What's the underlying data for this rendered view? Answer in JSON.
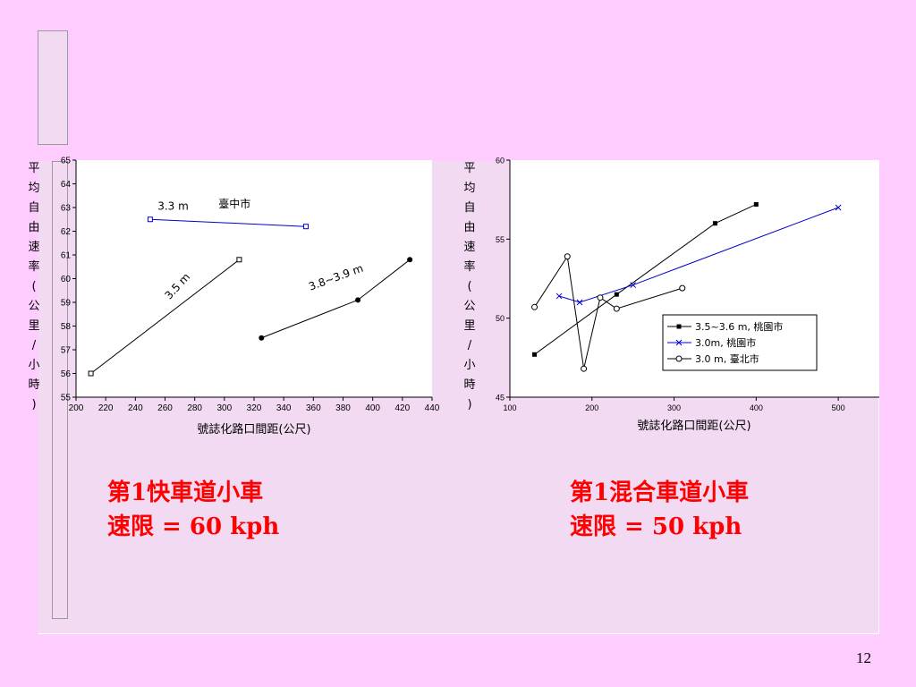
{
  "slide": {
    "page_number": "12",
    "left_caption": [
      "第1快車道小車",
      "速限 = 60 kph"
    ],
    "right_caption": [
      "第1混合車道小車",
      "速限 = 50 kph"
    ]
  },
  "chart_data": [
    {
      "type": "line",
      "title": "",
      "xlabel": "號誌化路口間距(公尺)",
      "ylabel": "平均自由速率(公里/小時)",
      "xlim": [
        200,
        440
      ],
      "ylim": [
        55,
        65
      ],
      "xticks": [
        200,
        220,
        240,
        260,
        280,
        300,
        320,
        340,
        360,
        380,
        400,
        420,
        440
      ],
      "yticks": [
        55,
        56,
        57,
        58,
        59,
        60,
        61,
        62,
        63,
        64,
        65
      ],
      "annotations": [
        {
          "text": "3.3 m",
          "x": 255,
          "y": 62.9,
          "angle": 0
        },
        {
          "text": "臺中市",
          "x": 296,
          "y": 63.0,
          "angle": 0
        },
        {
          "text": "3.5 m",
          "x": 263,
          "y": 59.1,
          "angle": -47
        },
        {
          "text": "3.8~3.9 m",
          "x": 358,
          "y": 59.5,
          "angle": -20
        }
      ],
      "series": [
        {
          "marker": "open-square",
          "color": "#0000cc",
          "x": [
            250,
            355
          ],
          "y": [
            62.5,
            62.2
          ]
        },
        {
          "marker": "open-square",
          "color": "#000000",
          "x": [
            210,
            310
          ],
          "y": [
            56.0,
            60.8
          ]
        },
        {
          "marker": "filled-circle",
          "color": "#000000",
          "x": [
            325,
            390,
            425
          ],
          "y": [
            57.5,
            59.1,
            60.8
          ]
        }
      ]
    },
    {
      "type": "line",
      "title": "",
      "xlabel": "號誌化路口間距(公尺)",
      "ylabel": "平均自由速率(公里/小時)",
      "xlim": [
        100,
        550
      ],
      "ylim": [
        45,
        60
      ],
      "xticks": [
        100,
        200,
        300,
        400,
        500
      ],
      "yticks": [
        45,
        50,
        55,
        60
      ],
      "legend_position": "bottom-right",
      "series": [
        {
          "name": "3.5~3.6 m, 桃園市",
          "marker": "filled-square",
          "color": "#000000",
          "x": [
            130,
            230,
            350,
            400
          ],
          "y": [
            47.7,
            51.5,
            56.0,
            57.2
          ]
        },
        {
          "name": "3.0m, 桃園市",
          "marker": "x",
          "color": "#0000cc",
          "x": [
            160,
            185,
            250,
            500
          ],
          "y": [
            51.4,
            51.0,
            52.1,
            57.0
          ]
        },
        {
          "name": "3.0 m, 臺北市",
          "marker": "open-circle",
          "color": "#000000",
          "x": [
            130,
            170,
            190,
            210,
            230,
            310
          ],
          "y": [
            50.7,
            53.9,
            46.8,
            51.3,
            50.6,
            51.9
          ]
        }
      ]
    }
  ]
}
